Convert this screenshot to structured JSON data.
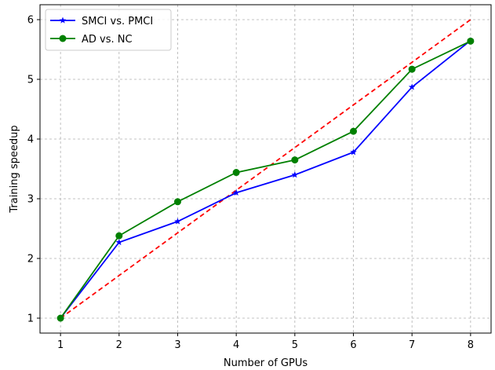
{
  "chart_data": {
    "type": "line",
    "title": "",
    "xlabel": "Number of GPUs",
    "ylabel": "Training speedup",
    "x": [
      1,
      2,
      3,
      4,
      5,
      6,
      7,
      8
    ],
    "xlim": [
      0.65,
      8.35
    ],
    "ylim": [
      0.75,
      6.25
    ],
    "xticks": [
      1,
      2,
      3,
      4,
      5,
      6,
      7,
      8
    ],
    "yticks": [
      1,
      2,
      3,
      4,
      5,
      6
    ],
    "grid": true,
    "legend_position": "top-left",
    "series": [
      {
        "name": "SMCI vs. PMCI",
        "color": "#0000ff",
        "marker": "star",
        "values": [
          1.0,
          2.27,
          2.62,
          3.1,
          3.4,
          3.78,
          4.87,
          5.65
        ]
      },
      {
        "name": "AD vs. NC",
        "color": "#008000",
        "marker": "circle",
        "values": [
          1.0,
          2.38,
          2.95,
          3.44,
          3.65,
          4.13,
          5.17,
          5.64
        ]
      }
    ],
    "reference_line": {
      "color": "#ff0000",
      "style": "dashed",
      "x": [
        1,
        8
      ],
      "values": [
        1.0,
        6.0
      ]
    }
  }
}
